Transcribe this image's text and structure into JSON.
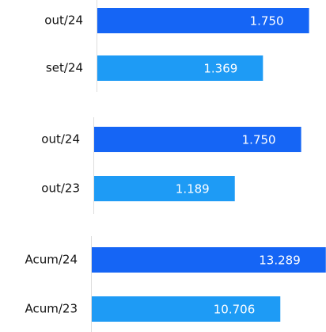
{
  "chart_data": [
    {
      "type": "hbar",
      "categories": [
        "out/24",
        "set/24"
      ],
      "values": [
        1750,
        1369
      ],
      "value_labels": [
        "1.750",
        "1.369"
      ],
      "colors": [
        "#1565f5",
        "#1e9bf5"
      ],
      "xlim": [
        0,
        1890
      ]
    },
    {
      "type": "hbar",
      "categories": [
        "out/24",
        "out/23"
      ],
      "values": [
        1750,
        1189
      ],
      "value_labels": [
        "1.750",
        "1.189"
      ],
      "colors": [
        "#1565f5",
        "#1e9bf5"
      ],
      "xlim": [
        0,
        1960
      ]
    },
    {
      "type": "hbar",
      "categories": [
        "Acum/24",
        "Acum/23"
      ],
      "values": [
        13289,
        10706
      ],
      "value_labels": [
        "13.289",
        "10.706"
      ],
      "colors": [
        "#1565f5",
        "#1e9bf5"
      ],
      "xlim": [
        0,
        13300
      ]
    }
  ]
}
